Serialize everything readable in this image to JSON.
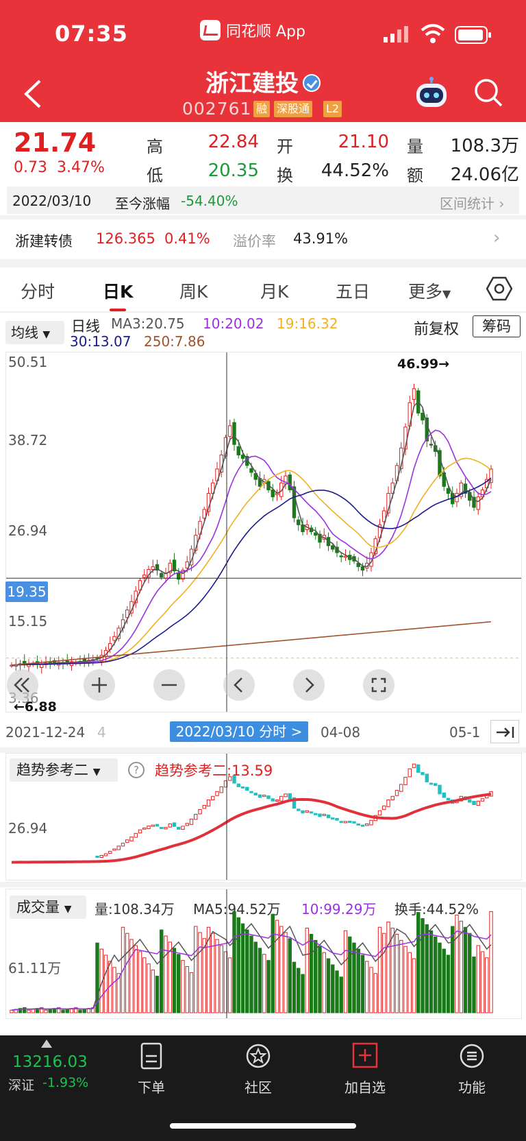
{
  "status": {
    "time": "07:35",
    "source_app": "同花顺 App"
  },
  "header": {
    "stock_name": "浙江建投",
    "stock_code": "002761",
    "tags": [
      "融",
      "深股通",
      "L2"
    ]
  },
  "quote": {
    "price": "21.74",
    "change": "0.73",
    "change_pct": "3.47%",
    "high_label": "高",
    "high": "22.84",
    "low_label": "低",
    "low": "20.35",
    "open_label": "开",
    "open": "21.10",
    "turnover_label": "换",
    "turnover": "44.52%",
    "volume_label": "量",
    "volume": "108.3万",
    "amount_label": "额",
    "amount": "24.06亿"
  },
  "date_bar": {
    "date": "2022/03/10",
    "since_label": "至今涨幅",
    "since_value": "-54.40%",
    "range_stats_label": "区间统计"
  },
  "convertible_bond": {
    "name": "浙建转债",
    "price": "126.365",
    "pct": "0.41%",
    "premium_label": "溢价率",
    "premium": "43.91%"
  },
  "tabs": [
    "分时",
    "日K",
    "周K",
    "月K",
    "五日",
    "更多"
  ],
  "active_tab": "日K",
  "ma_header": {
    "selector_label": "均线",
    "line_type": "日线",
    "ma3": "MA3:20.75",
    "ma10": "10:20.02",
    "ma19": "19:16.32",
    "ma30": "30:13.07",
    "ma250": "250:7.86",
    "adjust": "前复权",
    "chips_button": "筹码"
  },
  "colors": {
    "up": "#e02020",
    "down": "#1a7a1a",
    "ma3": "#555555",
    "ma10": "#9b30e0",
    "ma19": "#f0b020",
    "ma30": "#1a1a8a",
    "ma250": "#a0522d"
  },
  "main_chart": {
    "price_ticks": [
      "50.51",
      "38.72",
      "26.94",
      "15.15",
      "3.36"
    ],
    "crosshair_price": "19.35",
    "peak_label": "46.99→",
    "low_label": "←6.88"
  },
  "date_axis": {
    "start": "2021-12-24",
    "start_suffix": "4",
    "crosshair": "2022/03/10 分时 >",
    "mid": "04-08",
    "end": "05-1"
  },
  "trend_panel": {
    "selector_label": "趋势参考二",
    "value_label": "趋势参考二:13.59",
    "tick": "26.94"
  },
  "volume_panel": {
    "selector_label": "成交量",
    "volume": "量:108.34万",
    "ma5": "MA5:94.52万",
    "ma10": "10:99.29万",
    "turnover": "换手:44.52%",
    "tick": "61.11万"
  },
  "chart_data": {
    "type": "candlestick",
    "title": "浙江建投 日K",
    "x_range": [
      "2021-12-24",
      "2022-05"
    ],
    "ylim": [
      3.36,
      50.51
    ],
    "y_ticks": [
      50.51,
      38.72,
      26.94,
      15.15,
      3.36
    ],
    "peak": 46.99,
    "trough": 6.88,
    "close_series": [
      6.9,
      6.95,
      7.0,
      7.0,
      7.05,
      7.1,
      7.0,
      7.1,
      7.2,
      7.1,
      7.2,
      7.3,
      7.2,
      7.3,
      7.4,
      7.3,
      7.4,
      7.5,
      7.6,
      7.7,
      7.9,
      8.3,
      9.0,
      10.0,
      11.0,
      12.2,
      13.4,
      14.8,
      16.0,
      17.5,
      19.0,
      19.8,
      20.6,
      21.0,
      20.5,
      19.5,
      20.0,
      21.5,
      20.4,
      19.2,
      20.5,
      21.7,
      23.5,
      25.5,
      27.5,
      29.2,
      31.5,
      33.0,
      35.0,
      37.0,
      39.5,
      41.2,
      38.5,
      37.0,
      36.5,
      35.5,
      34.5,
      33.5,
      32.5,
      33.5,
      32.0,
      31.0,
      31.5,
      33.0,
      34.0,
      32.0,
      28.0,
      27.0,
      26.0,
      27.0,
      26.0,
      25.5,
      24.5,
      25.5,
      24.0,
      23.5,
      23.0,
      22.5,
      22.5,
      22.0,
      21.8,
      21.0,
      20.5,
      21.5,
      23.0,
      25.0,
      27.0,
      29.0,
      31.5,
      33.0,
      35.5,
      38.0,
      41.0,
      44.5,
      46.5,
      43.0,
      42.0,
      39.0,
      38.5,
      37.5,
      34.0,
      32.5,
      31.5,
      30.0,
      31.5,
      33.0,
      31.5,
      30.5,
      29.5,
      31.0,
      32.0,
      33.5,
      35.0
    ]
  },
  "bottom_bar": {
    "index_value": "13216.03",
    "index_name": "深证",
    "index_change": "-1.93%",
    "nav": [
      "下单",
      "社区",
      "加自选",
      "功能"
    ]
  }
}
